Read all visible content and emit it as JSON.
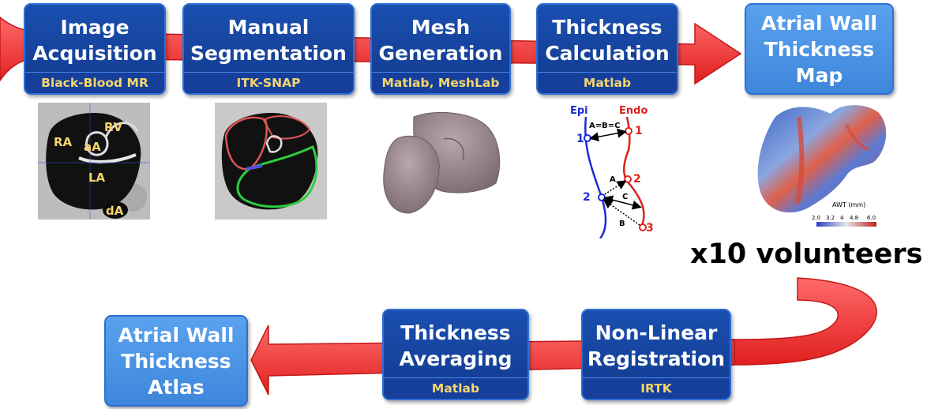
{
  "steps": {
    "acquisition": {
      "title": "Image\nAcquisition",
      "tool": "Black-Blood MR"
    },
    "segmentation": {
      "title": "Manual\nSegmentation",
      "tool": "ITK-SNAP"
    },
    "mesh": {
      "title": "Mesh\nGeneration",
      "tool": "Matlab, MeshLab"
    },
    "thickness_calc": {
      "title": "Thickness\nCalculation",
      "tool": "Matlab"
    },
    "awt_map": {
      "title": "Atrial Wall\nThickness\nMap"
    },
    "registration": {
      "title": "Non-Linear\nRegistration",
      "tool": "IRTK"
    },
    "averaging": {
      "title": "Thickness\nAveraging",
      "tool": "Matlab"
    },
    "atlas": {
      "title": "Atrial Wall\nThickness\nAtlas"
    }
  },
  "volunteers_label": "x10 volunteers",
  "mri_labels": {
    "ra": "RA",
    "rv": "RV",
    "aa": "aA",
    "la": "LA",
    "da": "dA"
  },
  "thickness_diagram": {
    "epi": "Epi",
    "endo": "Endo",
    "equation": "A=B=C",
    "points_epi": [
      "1",
      "2"
    ],
    "points_endo": [
      "1",
      "2",
      "3"
    ],
    "segments": [
      "A",
      "B",
      "C"
    ]
  },
  "colorbar": {
    "title": "AWT (mm)",
    "ticks": [
      "2.0",
      "3.2",
      "4",
      "4.8",
      "6.0"
    ]
  },
  "colors": {
    "box_dark": "#123a8e",
    "box_light": "#4a95e6",
    "tool_text": "#f5d56b",
    "arrow": "#f23a3a",
    "epi": "#1c2bd6",
    "endo": "#d9241c"
  }
}
